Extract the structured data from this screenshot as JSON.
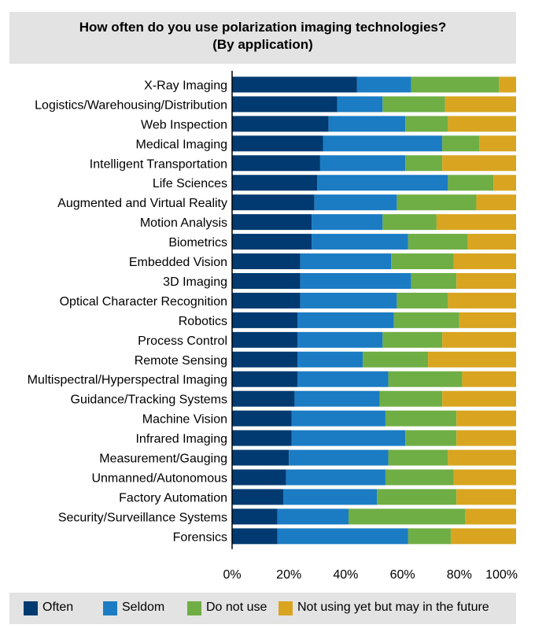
{
  "chart_data": {
    "type": "bar",
    "orientation": "horizontal",
    "stacked": true,
    "title_lines": [
      "How often do you use polarization imaging technologies?",
      "(By application)"
    ],
    "categories": [
      "X-Ray Imaging",
      "Logistics/Warehousing/Distribution",
      "Web Inspection",
      "Medical Imaging",
      "Intelligent Transportation",
      "Life Sciences",
      "Augmented and Virtual Reality",
      "Motion Analysis",
      "Biometrics",
      "Embedded Vision",
      "3D Imaging",
      "Optical Character Recognition",
      "Robotics",
      "Process Control",
      "Remote Sensing",
      "Multispectral/Hyperspectral Imaging",
      "Guidance/Tracking Systems",
      "Machine Vision",
      "Infrared Imaging",
      "Measurement/Gauging",
      "Unmanned/Autonomous",
      "Factory Automation",
      "Security/Surveillance Systems",
      "Forensics"
    ],
    "series": [
      {
        "name": "Often",
        "color": "#003a70",
        "values": [
          44,
          37,
          34,
          32,
          31,
          30,
          29,
          28,
          28,
          24,
          24,
          24,
          23,
          23,
          23,
          23,
          22,
          21,
          21,
          20,
          19,
          18,
          16,
          16
        ]
      },
      {
        "name": "Seldom",
        "color": "#1b7cc4",
        "values": [
          19,
          16,
          27,
          42,
          30,
          46,
          29,
          25,
          34,
          32,
          39,
          34,
          34,
          30,
          23,
          32,
          30,
          33,
          40,
          35,
          35,
          33,
          25,
          46
        ]
      },
      {
        "name": "Do not use",
        "color": "#6fae44",
        "values": [
          31,
          22,
          15,
          13,
          13,
          16,
          28,
          19,
          21,
          22,
          16,
          18,
          23,
          21,
          23,
          26,
          22,
          25,
          18,
          21,
          24,
          28,
          41,
          15
        ]
      },
      {
        "name": "Not using yet but may in the future",
        "color": "#d9a520",
        "values": [
          6,
          25,
          24,
          13,
          26,
          8,
          14,
          28,
          17,
          22,
          21,
          24,
          20,
          26,
          31,
          19,
          26,
          21,
          21,
          24,
          22,
          21,
          18,
          23
        ]
      }
    ],
    "xlim": [
      0,
      100
    ],
    "xticks": [
      "0%",
      "20%",
      "40%",
      "60%",
      "80%",
      "100%"
    ],
    "xlabel": "",
    "ylabel": "",
    "grid": false,
    "legend_position": "bottom"
  }
}
